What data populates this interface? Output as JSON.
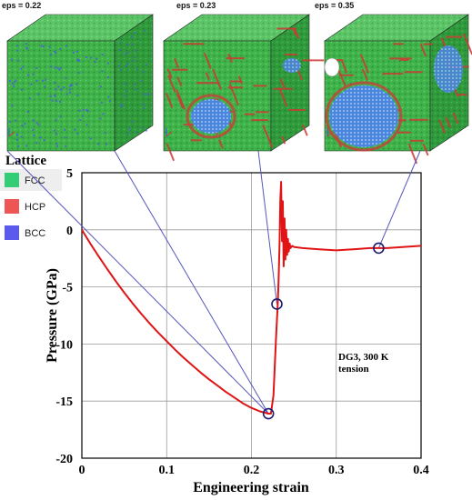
{
  "chart_data": {
    "type": "line",
    "xlabel": "Engineering strain",
    "ylabel": "Pressure (GPa)",
    "xlim": [
      0,
      0.4
    ],
    "ylim": [
      -20,
      5
    ],
    "x_ticks": [
      "0",
      "0.1",
      "0.2",
      "0.3",
      "0.4"
    ],
    "y_ticks": [
      "5",
      "0",
      "-5",
      "-10",
      "-15",
      "-20"
    ],
    "grid": true,
    "annotation": [
      "DG3, 300 K",
      "tension"
    ],
    "series": [
      {
        "color": "#e01414",
        "x": [
          0,
          0.01,
          0.02,
          0.03,
          0.04,
          0.05,
          0.06,
          0.07,
          0.08,
          0.09,
          0.1,
          0.11,
          0.12,
          0.13,
          0.14,
          0.15,
          0.16,
          0.17,
          0.18,
          0.19,
          0.2,
          0.21,
          0.22,
          0.223,
          0.226,
          0.229,
          0.231,
          0.232,
          0.233,
          0.234,
          0.235,
          0.236,
          0.237,
          0.238,
          0.239,
          0.24,
          0.241,
          0.242,
          0.243,
          0.244,
          0.245,
          0.246,
          0.248,
          0.25,
          0.26,
          0.28,
          0.3,
          0.32,
          0.34,
          0.35,
          0.36,
          0.38,
          0.4
        ],
        "y": [
          0,
          -1.2,
          -2.35,
          -3.45,
          -4.5,
          -5.5,
          -6.45,
          -7.35,
          -8.2,
          -9.0,
          -9.75,
          -10.5,
          -11.2,
          -11.85,
          -12.5,
          -13.1,
          -13.65,
          -14.2,
          -14.7,
          -15.2,
          -15.6,
          -15.9,
          -16.1,
          -16.1,
          -14.5,
          -9.5,
          -6.5,
          -4.5,
          -1.5,
          2.5,
          4.2,
          -1.0,
          2.5,
          -3.2,
          1.0,
          -2.6,
          0.0,
          -2.2,
          -0.8,
          -1.9,
          -1.2,
          -1.6,
          -1.4,
          -1.5,
          -1.6,
          -1.7,
          -1.8,
          -1.7,
          -1.6,
          -1.6,
          -1.6,
          -1.5,
          -1.4
        ]
      }
    ],
    "markers": [
      {
        "x": 0.22,
        "y": -16.1
      },
      {
        "x": 0.23,
        "y": -6.5
      },
      {
        "x": 0.35,
        "y": -1.6
      }
    ]
  },
  "panels": [
    {
      "label": "eps = 0.22"
    },
    {
      "label": "eps = 0.23"
    },
    {
      "label": "eps = 0.35"
    }
  ],
  "legend": {
    "title": "Lattice",
    "items": [
      {
        "label": "FCC",
        "color": "#33cc77"
      },
      {
        "label": "HCP",
        "color": "#ee5555"
      },
      {
        "label": "BCC",
        "color": "#5a5aee"
      }
    ]
  },
  "colors": {
    "fcc_green": "#3cb043",
    "hcp_red": "#d2352a",
    "bcc_blue": "#3a7fd6",
    "leader_line": "#5555bb",
    "marker": "#1a1a70"
  }
}
